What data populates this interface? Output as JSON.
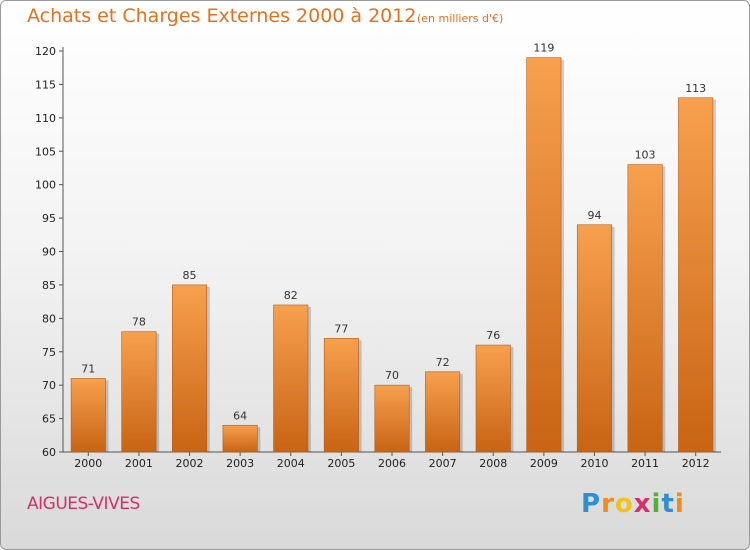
{
  "header": {
    "title": "Achats et Charges Externes 2000 à 2012",
    "subtitle": "(en milliers d'€)"
  },
  "footer": {
    "location": "AIGUES-VIVES",
    "brand": "Proxiti"
  },
  "chart_data": {
    "type": "bar",
    "title": "Achats et Charges Externes 2000 à 2012",
    "subtitle": "(en milliers d'€)",
    "categories": [
      "2000",
      "2001",
      "2002",
      "2003",
      "2004",
      "2005",
      "2006",
      "2007",
      "2008",
      "2009",
      "2010",
      "2011",
      "2012"
    ],
    "values": [
      71,
      78,
      85,
      64,
      82,
      77,
      70,
      72,
      76,
      119,
      94,
      103,
      113
    ],
    "ylim": [
      60,
      120
    ],
    "yticks": [
      60,
      65,
      70,
      75,
      80,
      85,
      90,
      95,
      100,
      105,
      110,
      115,
      120
    ],
    "data_labels": true,
    "grid": false,
    "colors": {
      "bar_top": "#f7a04e",
      "bar_bottom": "#c86414",
      "title": "#e8701b",
      "location": "#d0316a"
    }
  }
}
